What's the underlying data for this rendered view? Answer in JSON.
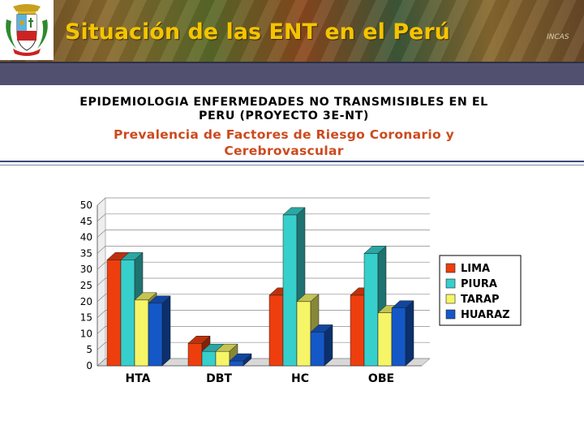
{
  "header": {
    "title": "Situación de las ENT en el Perú",
    "emblem_icon": "peru-coat-of-arms-icon",
    "corner_text": "INCAS"
  },
  "caption": {
    "line1a": "EPIDEMIOLOGIA ENFERMEDADES NO TRANSMISIBLES EN EL",
    "line1b": "PERU (PROYECTO 3E-NT)",
    "line2a": "Prevalencia de Factores de Riesgo Coronario y",
    "line2b": "Cerebrovascular"
  },
  "colors": {
    "title": "#f5c400",
    "subtitle": "#cc4a1e",
    "rule": "#3a4a7a"
  },
  "chart_data": {
    "type": "bar",
    "style": "3d-clustered",
    "categories": [
      "HTA",
      "DBT",
      "HC",
      "OBE"
    ],
    "series": [
      {
        "name": "LIMA",
        "color": "#ee3e0e",
        "values": [
          33,
          7,
          22,
          22
        ]
      },
      {
        "name": "PIURA",
        "color": "#36cfcc",
        "values": [
          33,
          4.5,
          47,
          35
        ]
      },
      {
        "name": "TARAP",
        "color": "#f5f567",
        "values": [
          20.5,
          4.5,
          20,
          16.5
        ]
      },
      {
        "name": "HUARAZ",
        "color": "#1458c8",
        "values": [
          19.5,
          1.5,
          10.5,
          18
        ]
      }
    ],
    "ylim": [
      0,
      50
    ],
    "yticks": [
      0,
      5,
      10,
      15,
      20,
      25,
      30,
      35,
      40,
      45,
      50
    ],
    "title": "",
    "xlabel": "",
    "ylabel": "",
    "grid": true,
    "legend_position": "right"
  }
}
